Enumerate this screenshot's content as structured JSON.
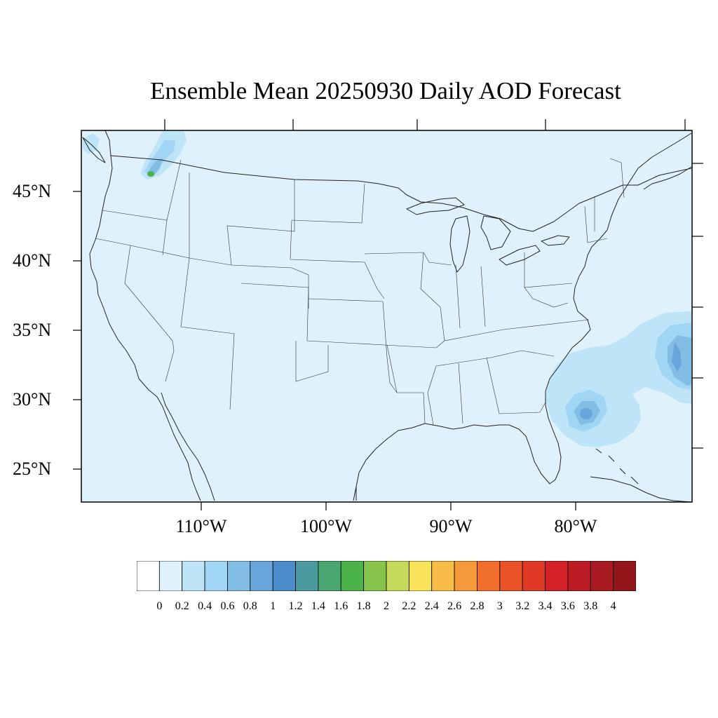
{
  "title": "Ensemble Mean 20250930 Daily AOD Forecast",
  "map": {
    "lat_labels": [
      "45°N",
      "40°N",
      "35°N",
      "30°N",
      "25°N"
    ],
    "lon_labels": [
      "110°W",
      "100°W",
      "90°W",
      "80°W"
    ],
    "background_color": "#dff2fb"
  },
  "colorbar": {
    "labels": [
      "0",
      "0.2",
      "0.4",
      "0.6",
      "0.8",
      "1",
      "1.2",
      "1.4",
      "1.6",
      "1.8",
      "2",
      "2.2",
      "2.4",
      "2.6",
      "2.8",
      "3",
      "3.2",
      "3.4",
      "3.6",
      "3.8",
      "4"
    ],
    "colors": [
      "#ffffff",
      "#dff2fb",
      "#bde4f7",
      "#a0d6f3",
      "#82bde4",
      "#68a5da",
      "#4b8dcb",
      "#4a9aa0",
      "#48a870",
      "#4ab44a",
      "#86c44c",
      "#c4d85a",
      "#f8e35a",
      "#f7bd48",
      "#f49a3a",
      "#f26e2c",
      "#ea5328",
      "#e03a26",
      "#d42027",
      "#bc1c24",
      "#a81a20",
      "#921519"
    ]
  }
}
